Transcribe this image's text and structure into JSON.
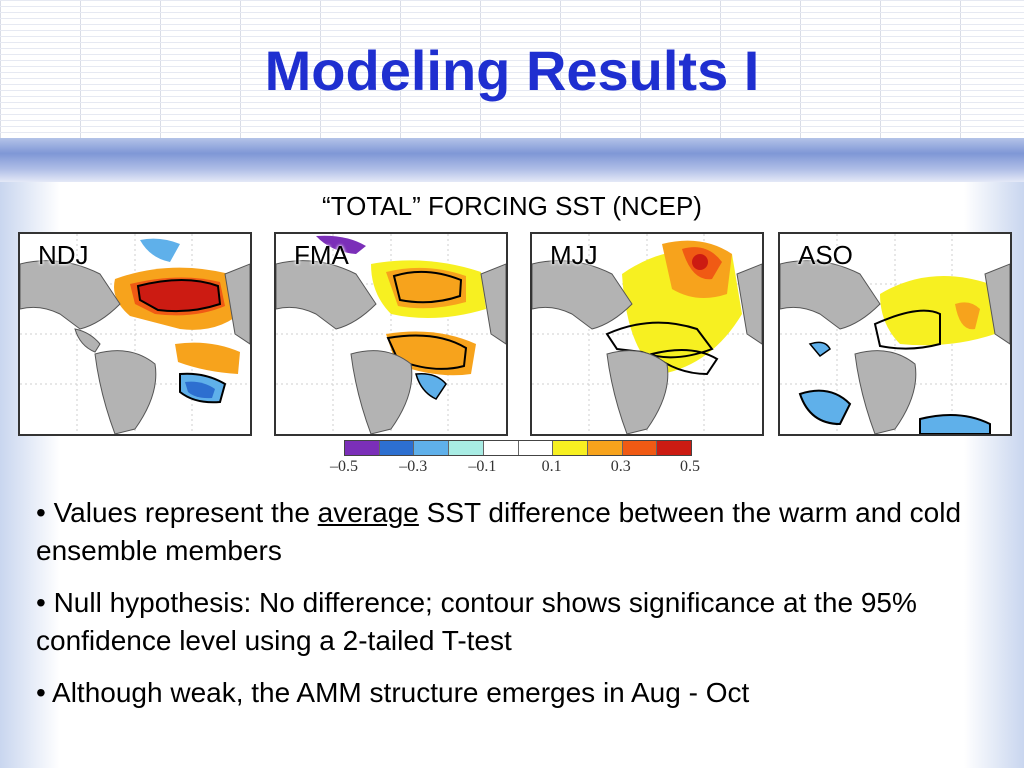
{
  "slide": {
    "title": "Modeling Results I"
  },
  "figure": {
    "title": "“TOTAL” FORCING SST (NCEP)",
    "panels": [
      {
        "label": "NDJ"
      },
      {
        "label": "FMA"
      },
      {
        "label": "MJJ"
      },
      {
        "label": "ASO"
      }
    ],
    "colorbar": {
      "ticks": [
        "–0.5",
        "–0.3",
        "–0.1",
        "0.1",
        "0.3",
        "0.5"
      ],
      "colors": [
        "#7b2fb8",
        "#2d6fd0",
        "#5fb0ea",
        "#a8ece4",
        "#ffffff",
        "#ffffff",
        "#f7f021",
        "#f7a31c",
        "#f05a14",
        "#cc1b12"
      ]
    }
  },
  "bullets": [
    {
      "before": "• Values represent the ",
      "emph": "average",
      "after": " SST difference between the warm and cold ensemble members"
    },
    {
      "text": "• Null hypothesis: No difference; contour shows significance at the 95% confidence level using a 2-tailed T-test"
    },
    {
      "text": "• Although weak, the AMM structure emerges in Aug - Oct"
    }
  ]
}
